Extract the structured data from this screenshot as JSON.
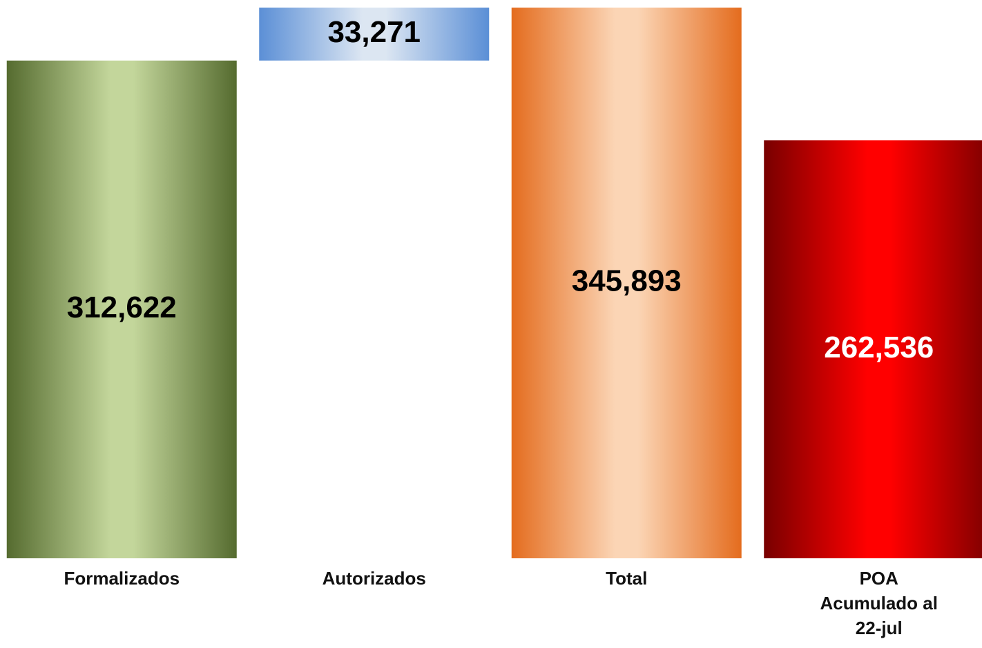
{
  "chart_data": {
    "type": "waterfall",
    "categories": [
      "Formalizados",
      "Autorizados",
      "Total",
      "POA\nAcumulado al\n22-jul"
    ],
    "values": [
      312622,
      33271,
      345893,
      262536
    ],
    "value_labels": [
      "312,622",
      "33,271",
      "345,893",
      "262,536"
    ],
    "measures": [
      "absolute",
      "relative",
      "total",
      "absolute"
    ],
    "colors": [
      "#556b2f",
      "#5b8fd6",
      "#e46c1e",
      "#780000"
    ],
    "highlight_colors": [
      "#c3d69b",
      "#dce6f2",
      "#fbd5b5",
      "#ff0000"
    ],
    "value_label_colors": [
      "#000000",
      "#000000",
      "#000000",
      "#ffffff"
    ]
  }
}
